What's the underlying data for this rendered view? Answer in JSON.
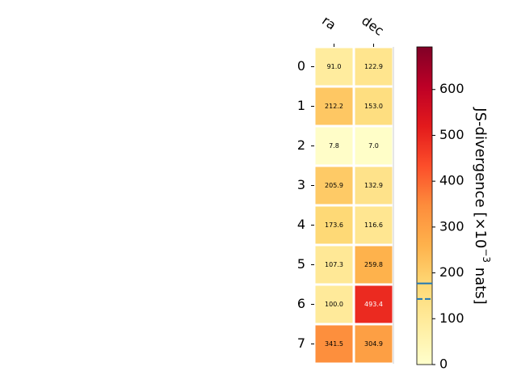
{
  "chart_data": {
    "type": "heatmap",
    "title": "",
    "columns": [
      "ra",
      "dec"
    ],
    "rows": [
      "0",
      "1",
      "2",
      "3",
      "4",
      "5",
      "6",
      "7"
    ],
    "values": [
      [
        91.0,
        122.9
      ],
      [
        212.2,
        153.0
      ],
      [
        7.8,
        7.0
      ],
      [
        205.9,
        132.9
      ],
      [
        173.6,
        116.6
      ],
      [
        107.3,
        259.8
      ],
      [
        100.0,
        493.4
      ],
      [
        341.5,
        304.9
      ]
    ],
    "value_labels": [
      [
        "91.0",
        "122.9"
      ],
      [
        "212.2",
        "153.0"
      ],
      [
        "7.8",
        "7.0"
      ],
      [
        "205.9",
        "132.9"
      ],
      [
        "173.6",
        "116.6"
      ],
      [
        "107.3",
        "259.8"
      ],
      [
        "100.0",
        "493.4"
      ],
      [
        "341.5",
        "304.9"
      ]
    ],
    "colormap": "YlOrRd",
    "colorbar": {
      "label_main": "JS-divergence [×10",
      "label_exp": "−3",
      "label_unit": " nats]",
      "range": [
        0,
        693
      ],
      "ticks": [
        0,
        100,
        200,
        300,
        400,
        500,
        600
      ],
      "tick_labels": [
        "0",
        "100",
        "200",
        "300",
        "400",
        "500",
        "600"
      ],
      "solid_marker": 177,
      "dashed_marker": 143,
      "marker_color": "#1f77b4"
    }
  }
}
